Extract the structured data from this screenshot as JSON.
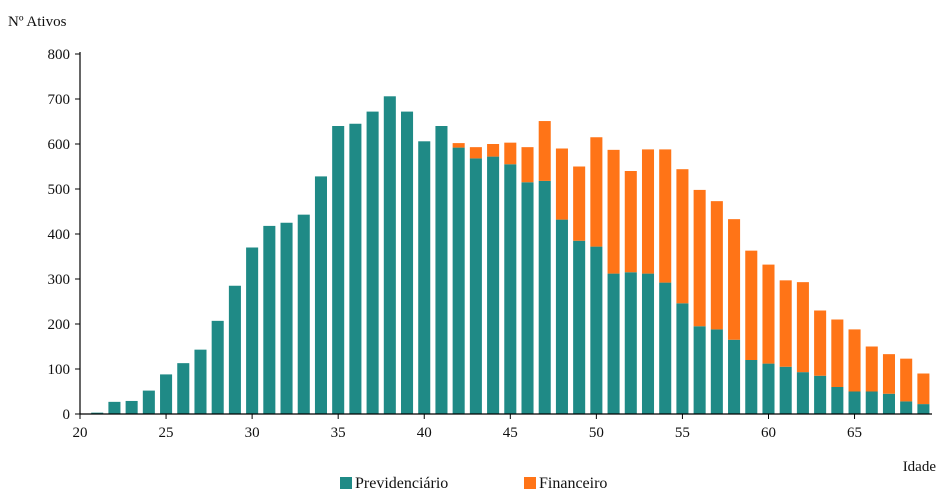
{
  "chart_data": {
    "type": "bar",
    "stacked": true,
    "ylabel": "Nº Ativos",
    "xlabel": "Idade",
    "ylim": [
      0,
      800
    ],
    "yticks": [
      0,
      100,
      200,
      300,
      400,
      500,
      600,
      700,
      800
    ],
    "xlim": [
      20,
      69.5
    ],
    "xticks": [
      20,
      25,
      30,
      35,
      40,
      45,
      50,
      55,
      60,
      65
    ],
    "grid": false,
    "legend_position": "bottom",
    "x": [
      21,
      22,
      23,
      24,
      25,
      26,
      27,
      28,
      29,
      30,
      31,
      32,
      33,
      34,
      35,
      36,
      37,
      38,
      39,
      40,
      41,
      42,
      43,
      44,
      45,
      46,
      47,
      48,
      49,
      50,
      51,
      52,
      53,
      54,
      55,
      56,
      57,
      58,
      59,
      60,
      61,
      62,
      63,
      64,
      65,
      66,
      67,
      68,
      69
    ],
    "series": [
      {
        "name": "Previdenciário",
        "color": "#1f8a86",
        "values": [
          3,
          27,
          29,
          52,
          88,
          113,
          143,
          207,
          285,
          370,
          418,
          425,
          443,
          528,
          640,
          645,
          672,
          706,
          672,
          606,
          640,
          592,
          568,
          572,
          555,
          515,
          518,
          432,
          385,
          372,
          312,
          315,
          312,
          292,
          246,
          195,
          188,
          165,
          120,
          112,
          105,
          93,
          85,
          60,
          50,
          50,
          45,
          28,
          22
        ]
      },
      {
        "name": "Financeiro",
        "color": "#ff7417",
        "values": [
          0,
          0,
          0,
          0,
          0,
          0,
          0,
          0,
          0,
          0,
          0,
          0,
          0,
          0,
          0,
          0,
          0,
          0,
          0,
          0,
          0,
          10,
          25,
          28,
          48,
          78,
          133,
          158,
          165,
          243,
          275,
          225,
          276,
          296,
          298,
          303,
          285,
          268,
          243,
          220,
          192,
          200,
          145,
          150,
          138,
          100,
          88,
          95,
          68
        ]
      }
    ]
  }
}
